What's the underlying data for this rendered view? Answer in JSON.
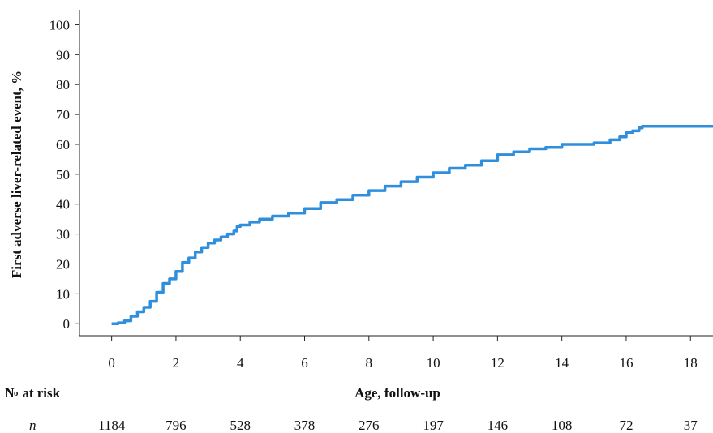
{
  "chart_data": {
    "type": "line",
    "title": "",
    "xlabel": "Age, follow-up",
    "ylabel": "First adverse liver-related event, %",
    "xlim": [
      -1,
      18.7
    ],
    "ylim": [
      -4,
      105
    ],
    "x_ticks": [
      0,
      2,
      4,
      6,
      8,
      10,
      12,
      14,
      16,
      18
    ],
    "y_ticks": [
      0,
      10,
      20,
      30,
      40,
      50,
      60,
      70,
      80,
      90,
      100
    ],
    "grid": false,
    "line_color": "#2f8fdc",
    "series": [
      {
        "name": "",
        "x": [
          0,
          0.2,
          0.4,
          0.6,
          0.8,
          1.0,
          1.2,
          1.4,
          1.6,
          1.8,
          2.0,
          2.2,
          2.4,
          2.6,
          2.8,
          3.0,
          3.2,
          3.4,
          3.6,
          3.8,
          3.9,
          4.0,
          4.3,
          4.6,
          5.0,
          5.5,
          6.0,
          6.5,
          7.0,
          7.5,
          8.0,
          8.5,
          9.0,
          9.5,
          10.0,
          10.5,
          11.0,
          11.5,
          12.0,
          12.5,
          13.0,
          13.5,
          14.0,
          14.5,
          15.0,
          15.5,
          15.8,
          16.0,
          16.2,
          16.4,
          16.5,
          17.0,
          17.5,
          18.0,
          18.7
        ],
        "values": [
          0,
          0.3,
          1.0,
          2.5,
          4.0,
          5.5,
          7.5,
          10.5,
          13.5,
          15.0,
          17.5,
          20.5,
          22.0,
          24.0,
          25.5,
          27.0,
          28.0,
          29.0,
          30.0,
          31.0,
          32.5,
          33.0,
          34.0,
          35.0,
          36.0,
          37.0,
          38.5,
          40.5,
          41.5,
          43.0,
          44.5,
          46.0,
          47.5,
          49.0,
          50.5,
          52.0,
          53.0,
          54.5,
          56.5,
          57.5,
          58.5,
          59.0,
          60.0,
          60.0,
          60.5,
          61.5,
          62.5,
          64.0,
          64.5,
          65.5,
          66.0,
          66.0,
          66.0,
          66.0,
          66.0
        ]
      }
    ],
    "at_risk": {
      "title": "№ at risk",
      "row_label": "n",
      "values": [
        "1184",
        "796",
        "528",
        "378",
        "276",
        "197",
        "146",
        "108",
        "72",
        "37"
      ]
    }
  }
}
